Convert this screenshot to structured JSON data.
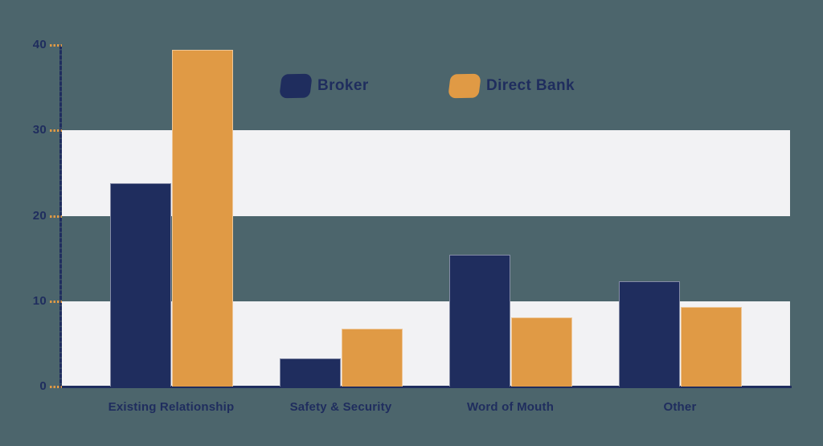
{
  "background_color": "#4C656C",
  "chart_data": {
    "type": "bar",
    "title": "",
    "xlabel": "",
    "ylabel": "",
    "categories": [
      "Existing Relationship",
      "Safety & Security",
      "Word of Mouth",
      "Other"
    ],
    "series": [
      {
        "name": "Broker",
        "color": "#1F2D5E",
        "values": [
          23.8,
          3.3,
          15.4,
          12.3
        ]
      },
      {
        "name": "Direct Bank",
        "color": "#E09A45",
        "values": [
          39.4,
          6.8,
          8.1,
          9.3
        ]
      }
    ],
    "ylim": [
      0,
      40
    ],
    "yticks": [
      0,
      10,
      20,
      30,
      40
    ],
    "grid": "horizontal-bands",
    "bands": [
      [
        0,
        10
      ],
      [
        20,
        30
      ]
    ],
    "band_color": "#F2F2F4",
    "axis_color": "#1F2D5E",
    "tick_dash_color": "#E09A45",
    "label_color": "#1F2D5E",
    "legend_position": "top-center"
  }
}
